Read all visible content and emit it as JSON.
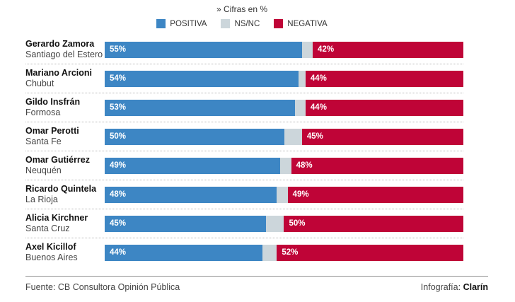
{
  "header": {
    "note": "» Cifras en %"
  },
  "legend": {
    "items": [
      {
        "label": "POSITIVA",
        "color": "#3d86c4"
      },
      {
        "label": "NS/NC",
        "color": "#ccd6db"
      },
      {
        "label": "NEGATIVA",
        "color": "#bf0437"
      }
    ]
  },
  "colors": {
    "positiva": "#3d86c4",
    "nsnc": "#ccd6db",
    "negativa": "#bf0437"
  },
  "chart_data": {
    "type": "bar",
    "orientation": "horizontal",
    "stacked": true,
    "unit": "%",
    "xlim": [
      0,
      100
    ],
    "note": "» Cifras en %",
    "legend_position": "top",
    "series_names": [
      "POSITIVA",
      "NS/NC",
      "NEGATIVA"
    ],
    "rows": [
      {
        "name": "Gerardo Zamora",
        "region": "Santiago del Estero",
        "positiva": 55,
        "nsnc": 3,
        "negativa": 42,
        "positiva_label": "55%",
        "negativa_label": "42%"
      },
      {
        "name": "Mariano Arcioni",
        "region": "Chubut",
        "positiva": 54,
        "nsnc": 2,
        "negativa": 44,
        "positiva_label": "54%",
        "negativa_label": "44%"
      },
      {
        "name": "Gildo Insfrán",
        "region": "Formosa",
        "positiva": 53,
        "nsnc": 3,
        "negativa": 44,
        "positiva_label": "53%",
        "negativa_label": "44%"
      },
      {
        "name": "Omar Perotti",
        "region": "Santa Fe",
        "positiva": 50,
        "nsnc": 5,
        "negativa": 45,
        "positiva_label": "50%",
        "negativa_label": "45%"
      },
      {
        "name": "Omar Gutiérrez",
        "region": "Neuquén",
        "positiva": 49,
        "nsnc": 3,
        "negativa": 48,
        "positiva_label": "49%",
        "negativa_label": "48%"
      },
      {
        "name": "Ricardo Quintela",
        "region": "La Rioja",
        "positiva": 48,
        "nsnc": 3,
        "negativa": 49,
        "positiva_label": "48%",
        "negativa_label": "49%"
      },
      {
        "name": "Alicia Kirchner",
        "region": "Santa Cruz",
        "positiva": 45,
        "nsnc": 5,
        "negativa": 50,
        "positiva_label": "45%",
        "negativa_label": "50%"
      },
      {
        "name": "Axel Kicillof",
        "region": "Buenos Aires",
        "positiva": 44,
        "nsnc": 4,
        "negativa": 52,
        "positiva_label": "44%",
        "negativa_label": "52%"
      }
    ]
  },
  "footer": {
    "source": "Fuente: CB Consultora Opinión Pública",
    "credit_label": "Infografía: ",
    "credit_name": "Clarín"
  }
}
